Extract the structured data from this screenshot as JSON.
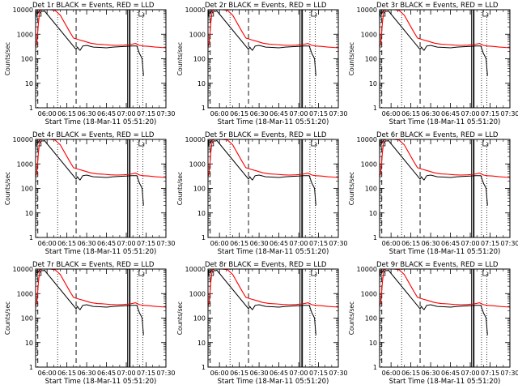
{
  "chart_data": [
    {
      "type": "line",
      "title": "Det 1r BLACK = Events, RED = LLD",
      "xlabel": "Start Time (18-Mar-11 05:51:20)",
      "ylabel": "Counts/sec",
      "yscale": "log",
      "ylim": [
        1,
        10000
      ],
      "xlim": [
        "05:51:20",
        "07:30:00"
      ],
      "x_ticks": [
        "06:00",
        "06:15",
        "06:30",
        "06:45",
        "07:00",
        "07:15",
        "07:30"
      ],
      "y_ticks": [
        "1",
        "10",
        "100",
        "1000",
        "10000"
      ],
      "legend": "title text",
      "series": [
        {
          "name": "Events",
          "color": "#000000"
        },
        {
          "name": "LLD",
          "color": "#ff0000"
        }
      ]
    },
    {
      "type": "line",
      "title": "Det 2r BLACK = Events, RED = LLD",
      "xlabel": "Start Time (18-Mar-11 05:51:20)",
      "ylabel": "Counts/sec",
      "yscale": "log",
      "ylim": [
        1,
        10000
      ],
      "xlim": [
        "05:51:20",
        "07:30:00"
      ],
      "x_ticks": [
        "06:00",
        "06:15",
        "06:30",
        "06:45",
        "07:00",
        "07:15",
        "07:30"
      ],
      "y_ticks": [
        "1",
        "10",
        "100",
        "1000",
        "10000"
      ],
      "legend": "title text",
      "series": [
        {
          "name": "Events",
          "color": "#000000"
        },
        {
          "name": "LLD",
          "color": "#ff0000"
        }
      ]
    },
    {
      "type": "line",
      "title": "Det 3r BLACK = Events, RED = LLD",
      "xlabel": "Start Time (18-Mar-11 05:51:20)",
      "ylabel": "Counts/sec",
      "yscale": "log",
      "ylim": [
        1,
        10000
      ],
      "xlim": [
        "05:51:20",
        "07:30:00"
      ],
      "x_ticks": [
        "06:00",
        "06:15",
        "06:30",
        "06:45",
        "07:00",
        "07:15",
        "07:30"
      ],
      "y_ticks": [
        "1",
        "10",
        "100",
        "1000",
        "10000"
      ],
      "legend": "title text",
      "series": [
        {
          "name": "Events",
          "color": "#000000"
        },
        {
          "name": "LLD",
          "color": "#ff0000"
        }
      ]
    },
    {
      "type": "line",
      "title": "Det 4r BLACK = Events, RED = LLD",
      "xlabel": "Start Time (18-Mar-11 05:51:20)",
      "ylabel": "Counts/sec",
      "yscale": "log",
      "ylim": [
        1,
        10000
      ],
      "xlim": [
        "05:51:20",
        "07:30:00"
      ],
      "x_ticks": [
        "06:00",
        "06:15",
        "06:30",
        "06:45",
        "07:00",
        "07:15",
        "07:30"
      ],
      "y_ticks": [
        "1",
        "10",
        "100",
        "1000",
        "10000"
      ],
      "legend": "title text",
      "series": [
        {
          "name": "Events",
          "color": "#000000"
        },
        {
          "name": "LLD",
          "color": "#ff0000"
        }
      ]
    },
    {
      "type": "line",
      "title": "Det 5r BLACK = Events, RED = LLD",
      "xlabel": "Start Time (18-Mar-11 05:51:20)",
      "ylabel": "Counts/sec",
      "yscale": "log",
      "ylim": [
        1,
        10000
      ],
      "xlim": [
        "05:51:20",
        "07:30:00"
      ],
      "x_ticks": [
        "06:00",
        "06:15",
        "06:30",
        "06:45",
        "07:00",
        "07:15",
        "07:30"
      ],
      "y_ticks": [
        "1",
        "10",
        "100",
        "1000",
        "10000"
      ],
      "legend": "title text",
      "series": [
        {
          "name": "Events",
          "color": "#000000"
        },
        {
          "name": "LLD",
          "color": "#ff0000"
        }
      ]
    },
    {
      "type": "line",
      "title": "Det 6r BLACK = Events, RED = LLD",
      "xlabel": "Start Time (18-Mar-11 05:51:20)",
      "ylabel": "Counts/sec",
      "yscale": "log",
      "ylim": [
        1,
        10000
      ],
      "xlim": [
        "05:51:20",
        "07:30:00"
      ],
      "x_ticks": [
        "06:00",
        "06:15",
        "06:30",
        "06:45",
        "07:00",
        "07:15",
        "07:30"
      ],
      "y_ticks": [
        "1",
        "10",
        "100",
        "1000",
        "10000"
      ],
      "legend": "title text",
      "series": [
        {
          "name": "Events",
          "color": "#000000"
        },
        {
          "name": "LLD",
          "color": "#ff0000"
        }
      ]
    },
    {
      "type": "line",
      "title": "Det 7r BLACK = Events, RED = LLD",
      "xlabel": "Start Time (18-Mar-11 05:51:20)",
      "ylabel": "Counts/sec",
      "yscale": "log",
      "ylim": [
        1,
        10000
      ],
      "xlim": [
        "05:51:20",
        "07:30:00"
      ],
      "x_ticks": [
        "06:00",
        "06:15",
        "06:30",
        "06:45",
        "07:00",
        "07:15",
        "07:30"
      ],
      "y_ticks": [
        "1",
        "10",
        "100",
        "1000",
        "10000"
      ],
      "legend": "title text",
      "series": [
        {
          "name": "Events",
          "color": "#000000"
        },
        {
          "name": "LLD",
          "color": "#ff0000"
        }
      ]
    },
    {
      "type": "line",
      "title": "Det 8r BLACK = Events, RED = LLD",
      "xlabel": "Start Time (18-Mar-11 05:51:20)",
      "ylabel": "Counts/sec",
      "yscale": "log",
      "ylim": [
        1,
        10000
      ],
      "xlim": [
        "05:51:20",
        "07:30:00"
      ],
      "x_ticks": [
        "06:00",
        "06:15",
        "06:30",
        "06:45",
        "07:00",
        "07:15",
        "07:30"
      ],
      "y_ticks": [
        "1",
        "10",
        "100",
        "1000",
        "10000"
      ],
      "legend": "title text",
      "series": [
        {
          "name": "Events",
          "color": "#000000"
        },
        {
          "name": "LLD",
          "color": "#ff0000"
        }
      ]
    },
    {
      "type": "line",
      "title": "Det 9r BLACK = Events, RED = LLD",
      "xlabel": "Start Time (18-Mar-11 05:51:20)",
      "ylabel": "Counts/sec",
      "yscale": "log",
      "ylim": [
        1,
        10000
      ],
      "xlim": [
        "05:51:20",
        "07:30:00"
      ],
      "x_ticks": [
        "06:00",
        "06:15",
        "06:30",
        "06:45",
        "07:00",
        "07:15",
        "07:30"
      ],
      "y_ticks": [
        "1",
        "10",
        "100",
        "1000",
        "10000"
      ],
      "legend": "title text",
      "series": [
        {
          "name": "Events",
          "color": "#000000"
        },
        {
          "name": "LLD",
          "color": "#ff0000"
        }
      ]
    }
  ],
  "shared_series": {
    "events": {
      "x": [
        "05:52:30",
        "05:53:00",
        "05:54:00",
        "05:55:00",
        "05:56:00",
        "05:57:00",
        "05:58:00",
        "06:22:00",
        "06:23:00",
        "06:24:00",
        "06:25:00",
        "06:27:00",
        "06:30:00",
        "06:35:00",
        "06:40:00",
        "06:45:00",
        "06:50:00",
        "06:55:00",
        "07:00:00",
        "07:04:00",
        "07:08:00",
        "07:10:00",
        "07:11:00",
        "07:12:00",
        "07:13:00"
      ],
      "y": [
        8000,
        7000,
        9000,
        7500,
        8800,
        8500,
        9000,
        240,
        300,
        250,
        220,
        330,
        350,
        300,
        290,
        280,
        300,
        310,
        320,
        330,
        330,
        160,
        130,
        100,
        20
      ]
    },
    "lld": {
      "x": [
        "05:51:20",
        "05:52:00",
        "05:52:40",
        "05:53:30",
        "05:54:30",
        "05:56:00",
        "05:58:00",
        "06:02:00",
        "06:06:00",
        "06:10:00",
        "06:14:00",
        "06:17:00",
        "06:20:00",
        "06:24:00",
        "06:28:00",
        "06:33:00",
        "06:38:00",
        "06:43:00",
        "06:48:00",
        "06:53:00",
        "06:58:00",
        "07:03:00",
        "07:07:00",
        "07:10:00",
        "07:13:00",
        "07:17:00",
        "07:22:00",
        "07:26:00",
        "07:30:00"
      ],
      "y": [
        300,
        400,
        800,
        3000,
        9000,
        10000,
        10000,
        10000,
        9500,
        6000,
        2500,
        1300,
        700,
        600,
        520,
        430,
        390,
        380,
        360,
        350,
        360,
        380,
        420,
        350,
        330,
        320,
        300,
        290,
        280
      ]
    },
    "solid_vlines": [
      "07:01:00",
      "07:02:20",
      "07:02:50"
    ],
    "dashed_vlines": [
      "05:53:00",
      "06:22:00"
    ],
    "dotted_vlines": [
      "06:08:00",
      "07:08:30",
      "07:12:30"
    ],
    "black_top_marks": [
      "05:53:40",
      "07:11:30"
    ]
  }
}
